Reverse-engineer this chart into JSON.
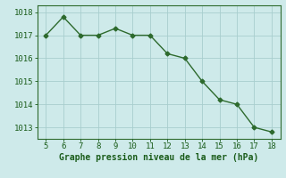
{
  "x": [
    5,
    6,
    7,
    8,
    9,
    10,
    11,
    12,
    13,
    14,
    15,
    16,
    17,
    18
  ],
  "y": [
    1017.0,
    1017.8,
    1017.0,
    1017.0,
    1017.3,
    1017.0,
    1017.0,
    1016.2,
    1016.0,
    1015.0,
    1014.2,
    1014.0,
    1013.0,
    1012.8
  ],
  "line_color": "#2d6a2d",
  "marker": "D",
  "marker_size": 2.5,
  "bg_color": "#ceeaea",
  "grid_color": "#a8cece",
  "xlabel": "Graphe pression niveau de la mer (hPa)",
  "xlabel_color": "#1a5c1a",
  "xlabel_fontsize": 7,
  "tick_color": "#1a5c1a",
  "tick_fontsize": 6.5,
  "xlim": [
    4.5,
    18.5
  ],
  "ylim": [
    1012.5,
    1018.3
  ],
  "yticks": [
    1013,
    1014,
    1015,
    1016,
    1017,
    1018
  ],
  "xticks": [
    5,
    6,
    7,
    8,
    9,
    10,
    11,
    12,
    13,
    14,
    15,
    16,
    17,
    18
  ],
  "line_width": 1.0
}
